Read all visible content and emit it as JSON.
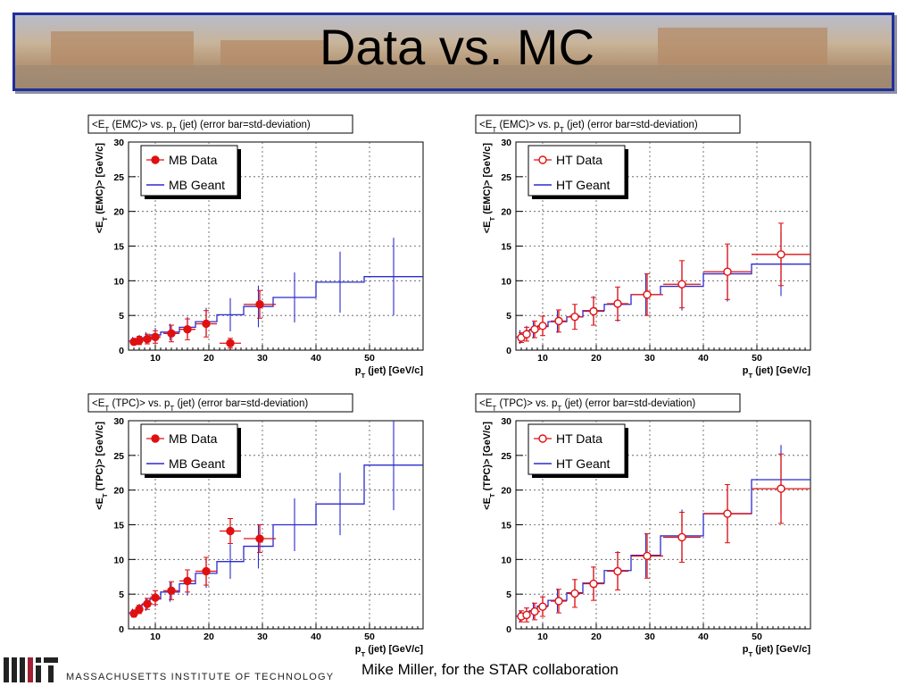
{
  "slide": {
    "title": "Data vs. MC",
    "footer": "Mike Miller, for the STAR collaboration",
    "institution": "MASSACHUSETTS INSTITUTE OF TECHNOLOGY",
    "banner_colors": {
      "border": "#1f2f9a"
    }
  },
  "colors": {
    "data": "#e01010",
    "mc": "#2b2bd0",
    "grid": "#555555"
  },
  "chart_data": [
    {
      "type": "line",
      "title": "<E_T (EMC)> vs. p_T (jet) (error bar=std-deviation)",
      "xlabel": "p_T (jet) [GeV/c]",
      "ylabel": "<E_T (EMC)> [GeV/c]",
      "xlim": [
        5,
        60
      ],
      "ylim": [
        0,
        30
      ],
      "xticks": [
        10,
        20,
        30,
        40,
        50
      ],
      "yticks": [
        0,
        5,
        10,
        15,
        20,
        25,
        30
      ],
      "grid": true,
      "legend_position": "top-left",
      "series": [
        {
          "name": "MB Data",
          "style": "data",
          "marker": "filled",
          "x": [
            6,
            7,
            8.5,
            10,
            13,
            16,
            19.5,
            24,
            29.5
          ],
          "xerr": [
            0.5,
            0.5,
            1,
            1,
            1.5,
            1.5,
            2,
            2,
            3
          ],
          "y": [
            1.2,
            1.4,
            1.6,
            1.9,
            2.4,
            3,
            3.8,
            1,
            6.6
          ],
          "yerr": [
            0.4,
            0.6,
            0.7,
            0.9,
            1.2,
            1.5,
            1.9,
            0.7,
            2
          ]
        },
        {
          "name": "MB Geant",
          "style": "mc",
          "edges": [
            5,
            6.5,
            7.5,
            9,
            11,
            14.5,
            17.5,
            21.5,
            26.5,
            32,
            40,
            49,
            60
          ],
          "y": [
            1.3,
            1.5,
            1.8,
            2.2,
            2.6,
            3.3,
            4.1,
            5.1,
            6.3,
            7.6,
            9.8,
            10.6
          ],
          "yerr": [
            0.6,
            0.7,
            0.8,
            1,
            1.2,
            1.5,
            2,
            2.4,
            3,
            3.6,
            4.4,
            5.6
          ]
        }
      ]
    },
    {
      "type": "line",
      "title": "<E_T (EMC)> vs. p_T (jet) (error bar=std-deviation)",
      "xlabel": "p_T (jet) [GeV/c]",
      "ylabel": "<E_T (EMC)> [GeV/c]",
      "xlim": [
        5,
        60
      ],
      "ylim": [
        0,
        30
      ],
      "xticks": [
        10,
        20,
        30,
        40,
        50
      ],
      "yticks": [
        0,
        5,
        10,
        15,
        20,
        25,
        30
      ],
      "grid": true,
      "legend_position": "top-left",
      "series": [
        {
          "name": "HT Data",
          "style": "data",
          "marker": "open",
          "x": [
            6,
            7,
            8.5,
            10,
            13,
            16,
            19.5,
            24,
            29.5,
            36,
            44.5,
            54.5
          ],
          "xerr": [
            0.5,
            0.5,
            1,
            1,
            1.5,
            1.5,
            2,
            2,
            3,
            3.5,
            4.5,
            5.5
          ],
          "y": [
            1.8,
            2.3,
            3,
            3.5,
            4.2,
            4.8,
            5.6,
            6.7,
            8,
            9.5,
            11.3,
            13.8
          ],
          "yerr": [
            0.7,
            1,
            1.2,
            1.4,
            1.6,
            1.8,
            2,
            2.4,
            3,
            3.4,
            4,
            4.5
          ]
        },
        {
          "name": "HT Geant",
          "style": "mc",
          "edges": [
            5,
            6.5,
            7.5,
            9,
            11,
            14.5,
            17.5,
            21.5,
            26.5,
            32,
            40,
            49,
            60
          ],
          "y": [
            1.9,
            2.4,
            2.9,
            3.4,
            4.1,
            4.8,
            5.7,
            6.6,
            8,
            9.2,
            11,
            12.4
          ],
          "yerr": [
            1,
            1.1,
            1.2,
            1.4,
            1.6,
            1.8,
            2.1,
            2.5,
            3,
            3.5,
            4,
            4.6
          ]
        }
      ]
    },
    {
      "type": "line",
      "title": "<E_T (TPC)> vs. p_T (jet) (error bar=std-deviation)",
      "xlabel": "p_T (jet) [GeV/c]",
      "ylabel": "<E_T (TPC)> [GeV/c]",
      "xlim": [
        5,
        60
      ],
      "ylim": [
        0,
        30
      ],
      "xticks": [
        10,
        20,
        30,
        40,
        50
      ],
      "yticks": [
        0,
        5,
        10,
        15,
        20,
        25,
        30
      ],
      "grid": true,
      "legend_position": "top-left",
      "series": [
        {
          "name": "MB Data",
          "style": "data",
          "marker": "filled",
          "x": [
            6,
            7,
            8.5,
            10,
            13,
            16,
            19.5,
            24,
            29.5
          ],
          "xerr": [
            0.5,
            0.5,
            1,
            1,
            1.5,
            1.5,
            2,
            2,
            3
          ],
          "y": [
            2.2,
            2.8,
            3.6,
            4.5,
            5.5,
            6.9,
            8.3,
            14.1,
            13
          ],
          "yerr": [
            0.5,
            0.6,
            0.8,
            1,
            1.3,
            1.6,
            2,
            1.8,
            2
          ]
        },
        {
          "name": "MB Geant",
          "style": "mc",
          "edges": [
            5,
            6.5,
            7.5,
            9,
            11,
            14.5,
            17.5,
            21.5,
            26.5,
            32,
            40,
            49,
            60
          ],
          "y": [
            2.3,
            2.9,
            3.5,
            4.3,
            5.3,
            6.5,
            8,
            9.7,
            11.9,
            15,
            18,
            23.6
          ],
          "yerr": [
            0.6,
            0.7,
            0.9,
            1.1,
            1.4,
            1.7,
            2.1,
            2.5,
            3.2,
            3.8,
            4.5,
            6.5
          ]
        }
      ]
    },
    {
      "type": "line",
      "title": "<E_T (TPC)> vs. p_T (jet) (error bar=std-deviation)",
      "xlabel": "p_T (jet) [GeV/c]",
      "ylabel": "<E_T (TPC)> [GeV/c]",
      "xlim": [
        5,
        60
      ],
      "ylim": [
        0,
        30
      ],
      "xticks": [
        10,
        20,
        30,
        40,
        50
      ],
      "yticks": [
        0,
        5,
        10,
        15,
        20,
        25,
        30
      ],
      "grid": true,
      "legend_position": "top-left",
      "series": [
        {
          "name": "HT Data",
          "style": "data",
          "marker": "open",
          "x": [
            6,
            7,
            8.5,
            10,
            13,
            16,
            19.5,
            24,
            29.5,
            36,
            44.5,
            54.5
          ],
          "xerr": [
            0.5,
            0.5,
            1,
            1,
            1.5,
            1.5,
            2,
            2,
            3,
            3.5,
            4.5,
            5.5
          ],
          "y": [
            1.8,
            2,
            2.5,
            3.2,
            4,
            5.1,
            6.5,
            8.3,
            10.5,
            13.2,
            16.6,
            20.2
          ],
          "yerr": [
            0.8,
            1,
            1.2,
            1.4,
            1.7,
            2,
            2.4,
            2.7,
            3.2,
            3.6,
            4.2,
            5
          ]
        },
        {
          "name": "HT Geant",
          "style": "mc",
          "edges": [
            5,
            6.5,
            7.5,
            9,
            11,
            14.5,
            17.5,
            21.5,
            26.5,
            32,
            40,
            49,
            60
          ],
          "y": [
            1.8,
            2.1,
            2.6,
            3.3,
            4.1,
            5.2,
            6.6,
            8.4,
            10.6,
            13.4,
            16.6,
            21.5
          ],
          "yerr": [
            0.8,
            1,
            1.2,
            1.4,
            1.7,
            2,
            2.4,
            2.8,
            3.2,
            3.8,
            4.2,
            5
          ]
        }
      ]
    }
  ]
}
